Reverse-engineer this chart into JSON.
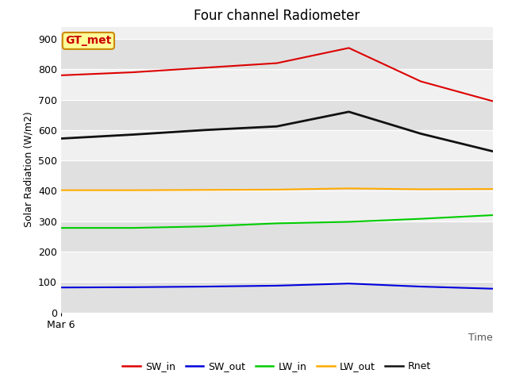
{
  "title": "Four channel Radiometer",
  "xlabel": "Time",
  "ylabel": "Solar Radiation (W/m2)",
  "annotation_text": "GT_met",
  "annotation_color": "#cc0000",
  "annotation_bg": "#ffff99",
  "annotation_border": "#cc8800",
  "x_label_start": "Mar 6",
  "x_values": [
    0,
    1,
    2,
    3,
    4,
    5,
    6
  ],
  "series": {
    "SW_in": {
      "values": [
        780,
        790,
        805,
        820,
        870,
        760,
        695
      ],
      "color": "#dd0000",
      "linewidth": 1.5
    },
    "SW_out": {
      "values": [
        82,
        83,
        85,
        88,
        95,
        85,
        78
      ],
      "color": "#0000dd",
      "linewidth": 1.5
    },
    "LW_in": {
      "values": [
        278,
        278,
        283,
        293,
        298,
        308,
        320
      ],
      "color": "#00cc00",
      "linewidth": 1.5
    },
    "LW_out": {
      "values": [
        402,
        402,
        403,
        404,
        408,
        405,
        406
      ],
      "color": "#ffaa00",
      "linewidth": 1.5
    },
    "Rnet": {
      "values": [
        572,
        585,
        600,
        612,
        660,
        588,
        530
      ],
      "color": "#111111",
      "linewidth": 2.0
    }
  },
  "ylim": [
    0,
    940
  ],
  "yticks": [
    0,
    100,
    200,
    300,
    400,
    500,
    600,
    700,
    800,
    900
  ],
  "fig_bg_color": "#ffffff",
  "plot_bg_color_light": "#f0f0f0",
  "plot_bg_color_dark": "#e0e0e0",
  "title_fontsize": 12,
  "axis_label_fontsize": 9,
  "tick_fontsize": 9,
  "legend_fontsize": 9
}
